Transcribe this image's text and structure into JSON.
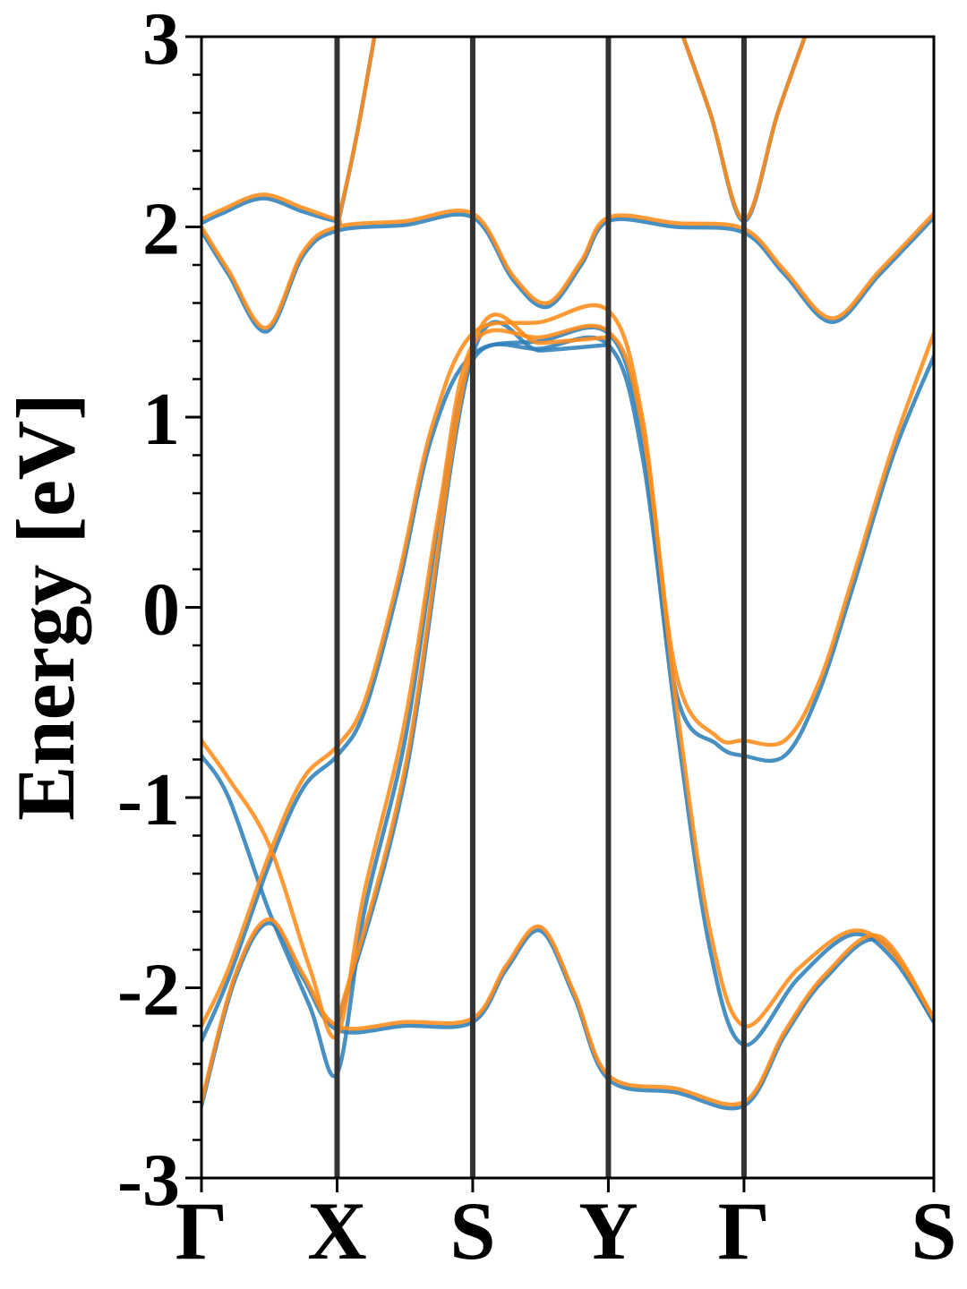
{
  "chart_data": {
    "type": "line",
    "title": "",
    "xlabel": "",
    "ylabel": "Energy [eV]",
    "ylim": [
      -3,
      3
    ],
    "xlim": [
      0,
      5.4
    ],
    "yticks": [
      {
        "value": 3,
        "label": "3"
      },
      {
        "value": 2,
        "label": "2"
      },
      {
        "value": 1,
        "label": "1"
      },
      {
        "value": 0,
        "label": "0"
      },
      {
        "value": -1,
        "label": "-1"
      },
      {
        "value": -2,
        "label": "-2"
      },
      {
        "value": -3,
        "label": "-3"
      }
    ],
    "yminor_step": 0.2,
    "kpoints": [
      {
        "label": "Γ",
        "x": 0
      },
      {
        "label": "X",
        "x": 1
      },
      {
        "label": "S",
        "x": 2
      },
      {
        "label": "Y",
        "x": 3
      },
      {
        "label": "Γ",
        "x": 4
      },
      {
        "label": "S",
        "x": 5.4
      }
    ],
    "grid": false,
    "legend": "none",
    "colors": {
      "series_1": "#2f7fb9",
      "series_2": "#ff8c1a",
      "kpath_lines": "#333333"
    },
    "series": [
      {
        "color": "#2f7fb9",
        "bands": [
          [
            [
              0,
              2.02
            ],
            [
              0.15,
              2.07
            ],
            [
              0.45,
              2.15
            ],
            [
              0.75,
              2.08
            ],
            [
              1,
              2.03
            ],
            [
              1.02,
              2.06
            ],
            [
              1.15,
              2.5
            ],
            [
              1.3,
              3.1
            ]
          ],
          [
            [
              0,
              1.98
            ],
            [
              0.2,
              1.75
            ],
            [
              0.48,
              1.45
            ],
            [
              0.75,
              1.85
            ],
            [
              1,
              1.98
            ],
            [
              1.5,
              2.01
            ],
            [
              2,
              2.05
            ],
            [
              2.3,
              1.72
            ],
            [
              2.55,
              1.58
            ],
            [
              2.8,
              1.8
            ],
            [
              3,
              2.03
            ],
            [
              3.5,
              2.0
            ],
            [
              4,
              1.97
            ],
            [
              4.3,
              1.75
            ],
            [
              4.65,
              1.5
            ],
            [
              5.0,
              1.75
            ],
            [
              5.4,
              2.05
            ]
          ],
          [
            [
              3.5,
              3.1
            ],
            [
              3.75,
              2.6
            ],
            [
              4,
              2.03
            ],
            [
              4.25,
              2.6
            ],
            [
              4.5,
              3.1
            ]
          ],
          [
            [
              0,
              -0.78
            ],
            [
              0.2,
              -1.0
            ],
            [
              0.5,
              -1.6
            ],
            [
              0.8,
              -2.1
            ],
            [
              1,
              -2.45
            ],
            [
              1.2,
              -1.6
            ],
            [
              1.5,
              -0.7
            ],
            [
              1.75,
              0.45
            ],
            [
              2,
              1.3
            ],
            [
              2.5,
              1.36
            ],
            [
              3,
              1.38
            ],
            [
              3.25,
              0.8
            ],
            [
              3.5,
              -0.6
            ],
            [
              3.75,
              -1.8
            ],
            [
              4,
              -2.3
            ],
            [
              4.4,
              -1.95
            ],
            [
              4.8,
              -1.72
            ],
            [
              5.1,
              -1.85
            ],
            [
              5.4,
              -2.18
            ]
          ],
          [
            [
              0,
              -2.28
            ],
            [
              0.2,
              -1.95
            ],
            [
              0.5,
              -1.35
            ],
            [
              0.75,
              -0.95
            ],
            [
              1,
              -0.78
            ],
            [
              1.2,
              -0.55
            ],
            [
              1.45,
              0.1
            ],
            [
              1.7,
              0.9
            ],
            [
              2,
              1.33
            ],
            [
              2.5,
              1.4
            ],
            [
              3,
              1.44
            ],
            [
              3.25,
              0.9
            ],
            [
              3.5,
              -0.45
            ],
            [
              3.8,
              -0.72
            ],
            [
              4,
              -0.78
            ],
            [
              4.3,
              -0.78
            ],
            [
              4.55,
              -0.45
            ],
            [
              4.8,
              0.1
            ],
            [
              5.1,
              0.8
            ],
            [
              5.4,
              1.32
            ]
          ],
          [
            [
              0,
              -2.62
            ],
            [
              0.25,
              -1.95
            ],
            [
              0.5,
              -1.66
            ],
            [
              0.75,
              -1.95
            ],
            [
              1,
              -2.22
            ],
            [
              1.5,
              -2.2
            ],
            [
              2,
              -2.18
            ],
            [
              2.25,
              -1.9
            ],
            [
              2.5,
              -1.7
            ],
            [
              2.75,
              -2.05
            ],
            [
              3,
              -2.48
            ],
            [
              3.5,
              -2.55
            ],
            [
              4,
              -2.62
            ],
            [
              4.3,
              -2.25
            ],
            [
              4.6,
              -1.95
            ],
            [
              5.0,
              -1.75
            ],
            [
              5.4,
              -2.18
            ]
          ],
          [
            [
              1,
              -2.2
            ],
            [
              1.5,
              -0.9
            ],
            [
              2,
              1.33
            ],
            [
              2.5,
              1.35
            ],
            [
              3,
              1.38
            ]
          ]
        ]
      },
      {
        "color": "#ff8c1a",
        "bands": [
          [
            [
              0,
              2.04
            ],
            [
              0.15,
              2.09
            ],
            [
              0.45,
              2.17
            ],
            [
              0.75,
              2.1
            ],
            [
              1,
              2.04
            ],
            [
              1.02,
              2.07
            ],
            [
              1.15,
              2.5
            ],
            [
              1.3,
              3.1
            ]
          ],
          [
            [
              0,
              2.0
            ],
            [
              0.2,
              1.77
            ],
            [
              0.48,
              1.47
            ],
            [
              0.75,
              1.87
            ],
            [
              1,
              2.0
            ],
            [
              1.5,
              2.03
            ],
            [
              2,
              2.07
            ],
            [
              2.3,
              1.74
            ],
            [
              2.55,
              1.6
            ],
            [
              2.8,
              1.82
            ],
            [
              3,
              2.05
            ],
            [
              3.5,
              2.02
            ],
            [
              4,
              1.99
            ],
            [
              4.3,
              1.77
            ],
            [
              4.65,
              1.52
            ],
            [
              5.0,
              1.77
            ],
            [
              5.4,
              2.07
            ]
          ],
          [
            [
              3.5,
              3.1
            ],
            [
              3.75,
              2.6
            ],
            [
              4,
              2.04
            ],
            [
              4.25,
              2.6
            ],
            [
              4.5,
              3.1
            ]
          ],
          [
            [
              0,
              -0.7
            ],
            [
              0.2,
              -0.9
            ],
            [
              0.5,
              -1.25
            ],
            [
              0.8,
              -1.9
            ],
            [
              1,
              -2.25
            ],
            [
              1.2,
              -1.5
            ],
            [
              1.5,
              -0.6
            ],
            [
              1.75,
              0.5
            ],
            [
              2,
              1.38
            ],
            [
              2.5,
              1.42
            ],
            [
              3,
              1.45
            ],
            [
              3.25,
              0.95
            ],
            [
              3.5,
              -0.5
            ],
            [
              3.75,
              -1.7
            ],
            [
              4,
              -2.2
            ],
            [
              4.4,
              -1.9
            ],
            [
              4.8,
              -1.7
            ],
            [
              5.1,
              -1.82
            ],
            [
              5.4,
              -2.16
            ]
          ],
          [
            [
              0,
              -2.2
            ],
            [
              0.2,
              -1.9
            ],
            [
              0.5,
              -1.3
            ],
            [
              0.75,
              -0.9
            ],
            [
              1,
              -0.73
            ],
            [
              1.2,
              -0.5
            ],
            [
              1.45,
              0.15
            ],
            [
              1.7,
              0.95
            ],
            [
              2,
              1.44
            ],
            [
              2.5,
              1.5
            ],
            [
              3,
              1.56
            ],
            [
              3.25,
              1.0
            ],
            [
              3.5,
              -0.35
            ],
            [
              3.8,
              -0.68
            ],
            [
              4,
              -0.7
            ],
            [
              4.3,
              -0.7
            ],
            [
              4.55,
              -0.4
            ],
            [
              4.8,
              0.15
            ],
            [
              5.1,
              0.85
            ],
            [
              5.4,
              1.44
            ]
          ],
          [
            [
              0,
              -2.6
            ],
            [
              0.25,
              -1.93
            ],
            [
              0.5,
              -1.64
            ],
            [
              0.75,
              -1.93
            ],
            [
              1,
              -2.2
            ],
            [
              1.5,
              -2.18
            ],
            [
              2,
              -2.16
            ],
            [
              2.25,
              -1.88
            ],
            [
              2.5,
              -1.68
            ],
            [
              2.75,
              -2.03
            ],
            [
              3,
              -2.46
            ],
            [
              3.5,
              -2.53
            ],
            [
              4,
              -2.6
            ],
            [
              4.3,
              -2.23
            ],
            [
              4.6,
              -1.93
            ],
            [
              5.0,
              -1.73
            ],
            [
              5.4,
              -2.16
            ]
          ],
          [
            [
              1,
              -2.18
            ],
            [
              1.5,
              -0.85
            ],
            [
              2,
              1.37
            ],
            [
              2.5,
              1.39
            ],
            [
              3,
              1.42
            ]
          ]
        ]
      }
    ]
  }
}
